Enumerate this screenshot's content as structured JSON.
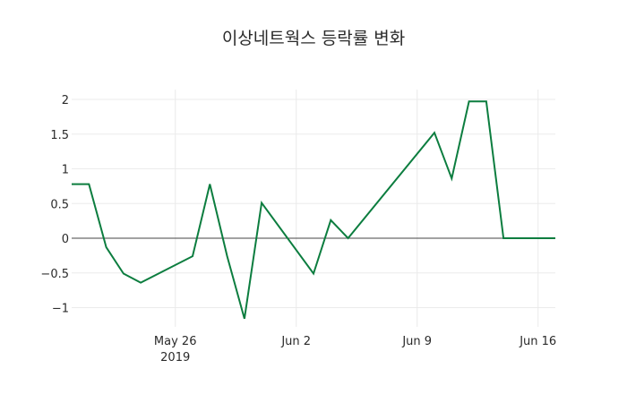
{
  "chart_data": {
    "type": "line",
    "title": "이상네트웍스 등락률 변화",
    "xlabel": "",
    "ylabel": "",
    "x": [
      "2019-05-20",
      "2019-05-21",
      "2019-05-22",
      "2019-05-23",
      "2019-05-24",
      "2019-05-27",
      "2019-05-28",
      "2019-05-29",
      "2019-05-30",
      "2019-05-31",
      "2019-06-03",
      "2019-06-04",
      "2019-06-05",
      "2019-06-10",
      "2019-06-11",
      "2019-06-12",
      "2019-06-13",
      "2019-06-14",
      "2019-06-17"
    ],
    "series": [
      {
        "name": "등락률",
        "color": "#0c7d3f",
        "values": [
          0.78,
          0.78,
          -0.13,
          -0.51,
          -0.64,
          -0.26,
          0.78,
          -0.26,
          -1.16,
          0.51,
          -0.51,
          0.26,
          0.0,
          1.52,
          0.86,
          1.97,
          1.97,
          0.0,
          0.0
        ]
      }
    ],
    "x_ticks": [
      {
        "date": "2019-05-26",
        "label": "May 26",
        "sublabel": "2019"
      },
      {
        "date": "2019-06-02",
        "label": "Jun 2"
      },
      {
        "date": "2019-06-09",
        "label": "Jun 9"
      },
      {
        "date": "2019-06-16",
        "label": "Jun 16"
      }
    ],
    "y_ticks": [
      2,
      1.5,
      1,
      0.5,
      0,
      -0.5,
      -1
    ],
    "y_tick_labels": [
      "2",
      "1.5",
      "1",
      "0.5",
      "0",
      "−0.5",
      "−1"
    ],
    "ylim": [
      -1.25,
      2.1
    ],
    "xlim": [
      "2019-05-20",
      "2019-06-17"
    ],
    "grid": true,
    "legend": "none"
  }
}
